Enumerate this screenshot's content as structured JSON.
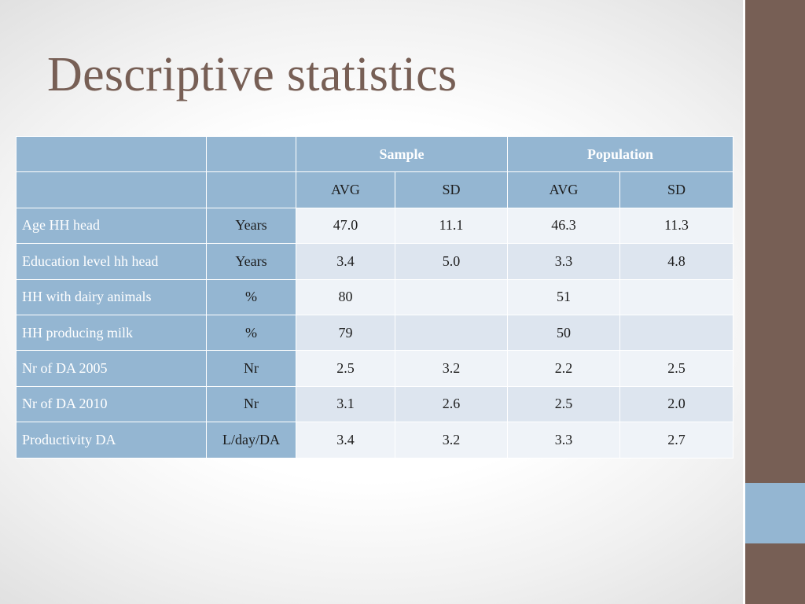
{
  "slide": {
    "title": "Descriptive statistics"
  },
  "table": {
    "group_headers": [
      "Sample",
      "Population"
    ],
    "sub_headers": [
      "AVG",
      "SD",
      "AVG",
      "SD"
    ],
    "rows": [
      {
        "label": "Age HH head",
        "unit": "Years",
        "sample_avg": "47.0",
        "sample_sd": "11.1",
        "pop_avg": "46.3",
        "pop_sd": "11.3"
      },
      {
        "label": "Education level hh head",
        "unit": "Years",
        "sample_avg": "3.4",
        "sample_sd": "5.0",
        "pop_avg": "3.3",
        "pop_sd": "4.8"
      },
      {
        "label": "HH with dairy animals",
        "unit": "%",
        "sample_avg": "80",
        "sample_sd": "",
        "pop_avg": "51",
        "pop_sd": ""
      },
      {
        "label": "HH producing milk",
        "unit": "%",
        "sample_avg": "79",
        "sample_sd": "",
        "pop_avg": "50",
        "pop_sd": ""
      },
      {
        "label": "Nr of  DA 2005",
        "unit": "Nr",
        "sample_avg": "2.5",
        "sample_sd": "3.2",
        "pop_avg": "2.2",
        "pop_sd": "2.5"
      },
      {
        "label": "Nr of  DA 2010",
        "unit": "Nr",
        "sample_avg": "3.1",
        "sample_sd": "2.6",
        "pop_avg": "2.5",
        "pop_sd": "2.0"
      },
      {
        "label": "Productivity DA",
        "unit": "L/day/DA",
        "sample_avg": "3.4",
        "sample_sd": "3.2",
        "pop_avg": "3.3",
        "pop_sd": "2.7"
      }
    ]
  },
  "colors": {
    "title": "#775f55",
    "side_bar": "#775f55",
    "side_accent": "#94b6d2",
    "header_fill": "#94b6d2",
    "band_dark": "#dde5ef",
    "band_light": "#eff3f8"
  }
}
